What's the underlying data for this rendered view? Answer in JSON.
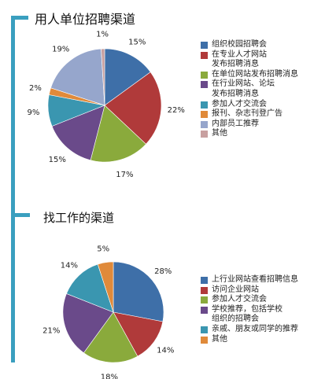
{
  "chart_data": [
    {
      "type": "pie",
      "title": "用人单位招聘渠道",
      "slices": [
        {
          "label": "组织校园招聘会",
          "value": 15,
          "color": "#3e6fa8"
        },
        {
          "label": "在专业人才网站\n发布招聘消息",
          "value": 22,
          "color": "#b03a3a"
        },
        {
          "label": "在单位网站发布招聘消息",
          "value": 17,
          "color": "#8aaa3c"
        },
        {
          "label": "在行业网站、论坛\n发布招聘消息",
          "value": 15,
          "color": "#6a4a8a"
        },
        {
          "label": "参加人才交流会",
          "value": 9,
          "color": "#3a96b0"
        },
        {
          "label": "报刊、杂志刊登广告",
          "value": 2,
          "color": "#e08a3a"
        },
        {
          "label": "内部员工推荐",
          "value": 19,
          "color": "#96a6cc"
        },
        {
          "label": "其他",
          "value": 1,
          "color": "#c8a0a0"
        }
      ],
      "value_labels": [
        "15%",
        "22%",
        "17%",
        "15%",
        "9%",
        "2%",
        "19%",
        "1%"
      ]
    },
    {
      "type": "pie",
      "title": "找工作的渠道",
      "slices": [
        {
          "label": "上行业网站查看招聘信息",
          "value": 28,
          "color": "#3e6fa8"
        },
        {
          "label": "访问企业网站",
          "value": 14,
          "color": "#b03a3a"
        },
        {
          "label": "参加人才交流会",
          "value": 18,
          "color": "#8aaa3c"
        },
        {
          "label": "学校推荐，包括学校\n组织的招聘会",
          "value": 21,
          "color": "#6a4a8a"
        },
        {
          "label": "亲戚、朋友或同学的推荐",
          "value": 14,
          "color": "#3a96b0"
        },
        {
          "label": "其他",
          "value": 5,
          "color": "#e08a3a"
        }
      ],
      "value_labels": [
        "28%",
        "14%",
        "18%",
        "21%",
        "14%",
        "5%"
      ]
    }
  ]
}
